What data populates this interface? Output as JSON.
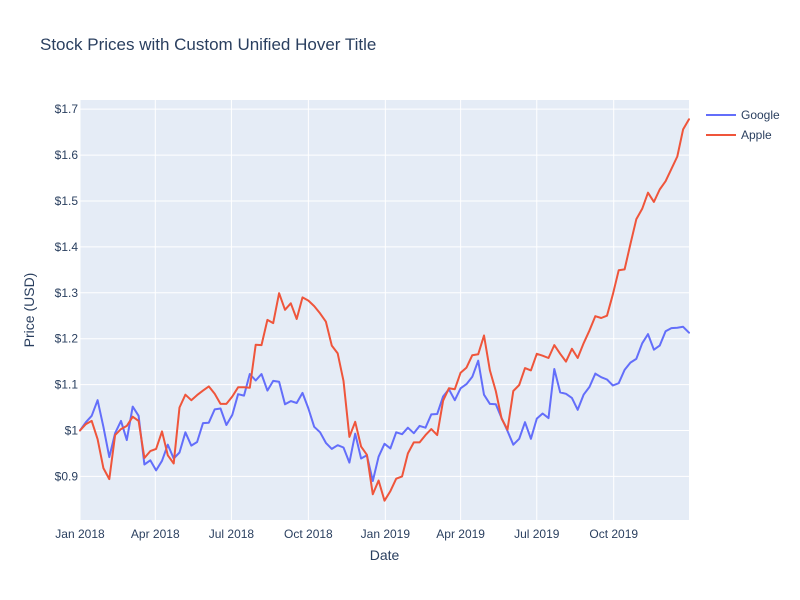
{
  "chart_data": {
    "type": "line",
    "title": "Stock Prices with Custom Unified Hover Title",
    "xlabel": "Date",
    "ylabel": "Price (USD)",
    "x_range": [
      "2018-01-01",
      "2019-12-30"
    ],
    "ylim": [
      0.805,
      1.72
    ],
    "x_ticks": [
      {
        "date": "2018-01-01",
        "label": "Jan 2018"
      },
      {
        "date": "2018-04-01",
        "label": "Apr 2018"
      },
      {
        "date": "2018-07-01",
        "label": "Jul 2018"
      },
      {
        "date": "2018-10-01",
        "label": "Oct 2018"
      },
      {
        "date": "2019-01-01",
        "label": "Jan 2019"
      },
      {
        "date": "2019-04-01",
        "label": "Apr 2019"
      },
      {
        "date": "2019-07-01",
        "label": "Jul 2019"
      },
      {
        "date": "2019-10-01",
        "label": "Oct 2019"
      }
    ],
    "y_ticks": [
      {
        "value": 0.9,
        "label": "$0.9"
      },
      {
        "value": 1.0,
        "label": "$1"
      },
      {
        "value": 1.1,
        "label": "$1.1"
      },
      {
        "value": 1.2,
        "label": "$1.2"
      },
      {
        "value": 1.3,
        "label": "$1.3"
      },
      {
        "value": 1.4,
        "label": "$1.4"
      },
      {
        "value": 1.5,
        "label": "$1.5"
      },
      {
        "value": 1.6,
        "label": "$1.6"
      },
      {
        "value": 1.7,
        "label": "$1.7"
      }
    ],
    "grid": true,
    "legend_position": "top-right",
    "colors": {
      "plot_bg": "#e5ecf6",
      "grid": "#ffffff",
      "text": "#2a3f5f"
    },
    "x": [
      "2018-01-01",
      "2018-01-08",
      "2018-01-15",
      "2018-01-22",
      "2018-01-29",
      "2018-02-05",
      "2018-02-12",
      "2018-02-19",
      "2018-02-26",
      "2018-03-05",
      "2018-03-12",
      "2018-03-19",
      "2018-03-26",
      "2018-04-02",
      "2018-04-09",
      "2018-04-16",
      "2018-04-23",
      "2018-04-30",
      "2018-05-07",
      "2018-05-14",
      "2018-05-21",
      "2018-05-28",
      "2018-06-04",
      "2018-06-11",
      "2018-06-18",
      "2018-06-25",
      "2018-07-02",
      "2018-07-09",
      "2018-07-16",
      "2018-07-23",
      "2018-07-30",
      "2018-08-06",
      "2018-08-13",
      "2018-08-20",
      "2018-08-27",
      "2018-09-03",
      "2018-09-10",
      "2018-09-17",
      "2018-09-24",
      "2018-10-01",
      "2018-10-08",
      "2018-10-15",
      "2018-10-22",
      "2018-10-29",
      "2018-11-05",
      "2018-11-12",
      "2018-11-19",
      "2018-11-26",
      "2018-12-03",
      "2018-12-10",
      "2018-12-17",
      "2018-12-24",
      "2018-12-31",
      "2019-01-07",
      "2019-01-14",
      "2019-01-21",
      "2019-01-28",
      "2019-02-04",
      "2019-02-11",
      "2019-02-18",
      "2019-02-25",
      "2019-03-04",
      "2019-03-11",
      "2019-03-18",
      "2019-03-25",
      "2019-04-01",
      "2019-04-08",
      "2019-04-15",
      "2019-04-22",
      "2019-04-29",
      "2019-05-06",
      "2019-05-13",
      "2019-05-20",
      "2019-05-27",
      "2019-06-03",
      "2019-06-10",
      "2019-06-17",
      "2019-06-24",
      "2019-07-01",
      "2019-07-08",
      "2019-07-15",
      "2019-07-22",
      "2019-07-29",
      "2019-08-05",
      "2019-08-12",
      "2019-08-19",
      "2019-08-26",
      "2019-09-02",
      "2019-09-09",
      "2019-09-16",
      "2019-09-23",
      "2019-09-30",
      "2019-10-07",
      "2019-10-14",
      "2019-10-21",
      "2019-10-28",
      "2019-11-04",
      "2019-11-11",
      "2019-11-18",
      "2019-11-25",
      "2019-12-02",
      "2019-12-09",
      "2019-12-16",
      "2019-12-23",
      "2019-12-30"
    ],
    "series": [
      {
        "name": "Google",
        "color": "#636efa",
        "values": [
          1.0,
          1.018,
          1.032,
          1.066,
          1.008,
          0.942,
          0.994,
          1.021,
          0.979,
          1.052,
          1.032,
          0.926,
          0.935,
          0.913,
          0.934,
          0.969,
          0.939,
          0.952,
          0.996,
          0.967,
          0.975,
          1.016,
          1.017,
          1.046,
          1.048,
          1.012,
          1.034,
          1.079,
          1.076,
          1.123,
          1.109,
          1.123,
          1.087,
          1.108,
          1.106,
          1.057,
          1.064,
          1.06,
          1.082,
          1.048,
          1.008,
          0.996,
          0.973,
          0.96,
          0.968,
          0.963,
          0.93,
          0.993,
          0.939,
          0.946,
          0.89,
          0.943,
          0.971,
          0.961,
          0.996,
          0.992,
          1.006,
          0.994,
          1.01,
          1.006,
          1.035,
          1.036,
          1.074,
          1.09,
          1.066,
          1.092,
          1.101,
          1.117,
          1.152,
          1.078,
          1.058,
          1.057,
          1.027,
          0.999,
          0.969,
          0.982,
          1.018,
          0.982,
          1.026,
          1.037,
          1.027,
          1.134,
          1.083,
          1.08,
          1.071,
          1.045,
          1.078,
          1.095,
          1.124,
          1.116,
          1.111,
          1.098,
          1.103,
          1.132,
          1.148,
          1.156,
          1.19,
          1.21,
          1.176,
          1.185,
          1.216,
          1.223,
          1.224,
          1.226,
          1.213
        ]
      },
      {
        "name": "Apple",
        "color": "#ef553b",
        "values": [
          1.0,
          1.014,
          1.021,
          0.981,
          0.918,
          0.894,
          0.99,
          1.003,
          1.01,
          1.03,
          1.021,
          0.94,
          0.955,
          0.96,
          0.998,
          0.946,
          0.928,
          1.05,
          1.078,
          1.066,
          1.077,
          1.087,
          1.096,
          1.08,
          1.058,
          1.058,
          1.074,
          1.094,
          1.094,
          1.093,
          1.187,
          1.186,
          1.241,
          1.234,
          1.299,
          1.263,
          1.277,
          1.243,
          1.29,
          1.283,
          1.271,
          1.255,
          1.237,
          1.185,
          1.168,
          1.108,
          0.986,
          1.019,
          0.965,
          0.947,
          0.861,
          0.891,
          0.847,
          0.868,
          0.895,
          0.9,
          0.95,
          0.974,
          0.974,
          0.99,
          1.003,
          0.99,
          1.065,
          1.092,
          1.09,
          1.126,
          1.137,
          1.164,
          1.166,
          1.207,
          1.131,
          1.086,
          1.026,
          1.002,
          1.086,
          1.099,
          1.136,
          1.131,
          1.167,
          1.163,
          1.158,
          1.186,
          1.167,
          1.15,
          1.178,
          1.158,
          1.19,
          1.218,
          1.249,
          1.245,
          1.25,
          1.297,
          1.349,
          1.351,
          1.406,
          1.46,
          1.483,
          1.518,
          1.498,
          1.525,
          1.543,
          1.57,
          1.597,
          1.656,
          1.678
        ]
      }
    ]
  }
}
